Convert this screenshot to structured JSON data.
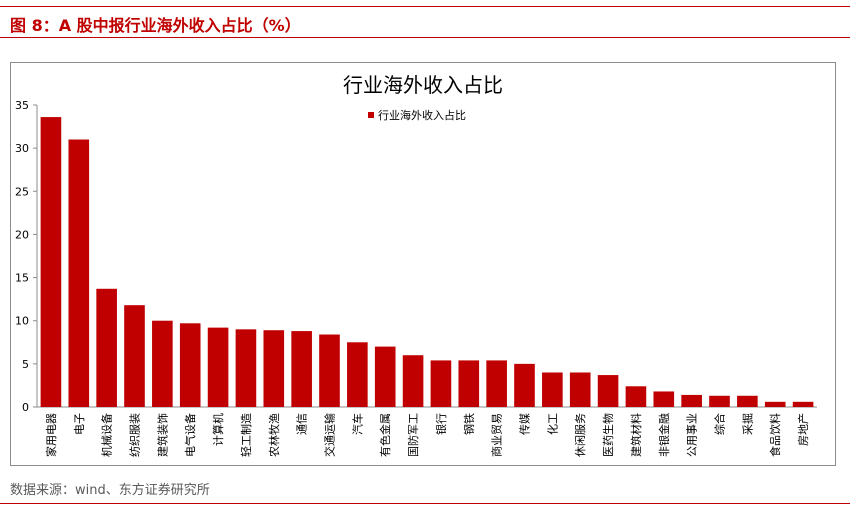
{
  "header": {
    "figure_title": "图 8：A 股中报行业海外收入占比（%）"
  },
  "source": "数据来源：wind、东方证券研究所",
  "colors": {
    "bar": "#c00000",
    "accent_rule": "#c00000",
    "axis": "#8c8c8c"
  },
  "chart_data": {
    "type": "bar",
    "title": "行业海外收入占比",
    "legend_position": "top-center",
    "grid": false,
    "ylim": [
      0,
      35
    ],
    "yticks": [
      0,
      5,
      10,
      15,
      20,
      25,
      30,
      35
    ],
    "series": [
      {
        "name": "行业海外收入占比",
        "values": [
          33.6,
          31.0,
          13.7,
          11.8,
          10.0,
          9.7,
          9.2,
          9.0,
          8.9,
          8.8,
          8.4,
          7.5,
          7.0,
          6.0,
          5.4,
          5.4,
          5.4,
          5.0,
          4.0,
          4.0,
          3.7,
          2.4,
          1.8,
          1.4,
          1.3,
          1.3,
          0.6,
          0.6
        ]
      }
    ],
    "categories": [
      "家用电器",
      "电子",
      "机械设备",
      "纺织服装",
      "建筑装饰",
      "电气设备",
      "计算机",
      "轻工制造",
      "农林牧渔",
      "通信",
      "交通运输",
      "汽车",
      "有色金属",
      "国防军工",
      "银行",
      "钢铁",
      "商业贸易",
      "传媒",
      "化工",
      "休闲服务",
      "医药生物",
      "建筑材料",
      "非银金融",
      "公用事业",
      "综合",
      "采掘",
      "食品饮料",
      "房地产"
    ]
  }
}
